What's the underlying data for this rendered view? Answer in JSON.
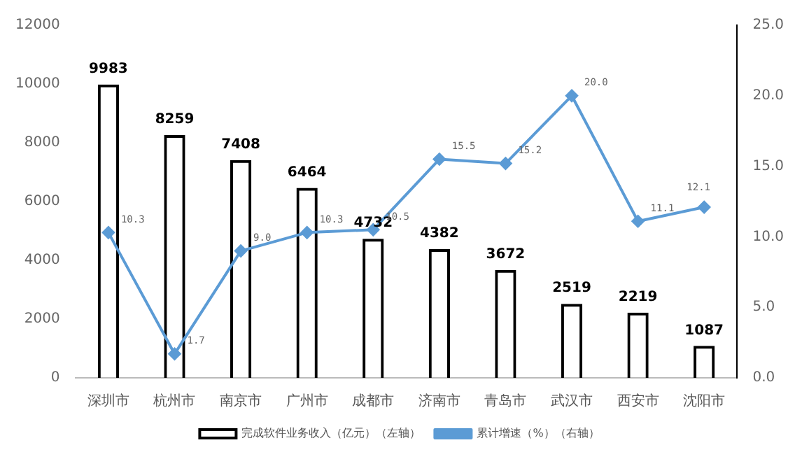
{
  "chart_data": {
    "type": "bar",
    "categories": [
      "深圳市",
      "杭州市",
      "南京市",
      "广州市",
      "成都市",
      "济南市",
      "青岛市",
      "武汉市",
      "西安市",
      "沈阳市"
    ],
    "series": [
      {
        "name": "完成软件业务收入（亿元）（左轴）",
        "color": "#000000",
        "values": [
          9983,
          8259,
          7408,
          6464,
          4732,
          4382,
          3672,
          2519,
          2219,
          1087
        ],
        "value_labels": [
          "9983",
          "8259",
          "7408",
          "6464",
          "4732",
          "4382",
          "3672",
          "2519",
          "2219",
          "1087"
        ]
      },
      {
        "name": "累计增速（%）（右轴）",
        "type": "line",
        "axis": "y2",
        "color": "#5b9bd5",
        "values": [
          10.3,
          1.7,
          9.0,
          10.3,
          10.5,
          15.5,
          15.2,
          20.0,
          11.1,
          12.1
        ],
        "value_labels": [
          "10.3",
          "1.7",
          "9.0",
          "10.3",
          "10.5",
          "15.5",
          "15.2",
          "20.0",
          "11.1",
          "12.1"
        ]
      }
    ],
    "ylim": [
      0,
      12000
    ],
    "yticks": [
      0,
      2000,
      4000,
      6000,
      8000,
      10000,
      12000
    ],
    "y2lim": [
      0,
      25
    ],
    "y2ticks": [
      {
        "value": 0,
        "label": "0.0"
      },
      {
        "value": 5,
        "label": "5.0"
      },
      {
        "value": 10,
        "label": "10.0"
      },
      {
        "value": 15,
        "label": "15.0"
      },
      {
        "value": 20,
        "label": "20.0"
      },
      {
        "value": 25,
        "label": "25.0"
      }
    ],
    "grid": false,
    "legend": "bottom",
    "marker": "diamond",
    "line_style": "solid"
  }
}
